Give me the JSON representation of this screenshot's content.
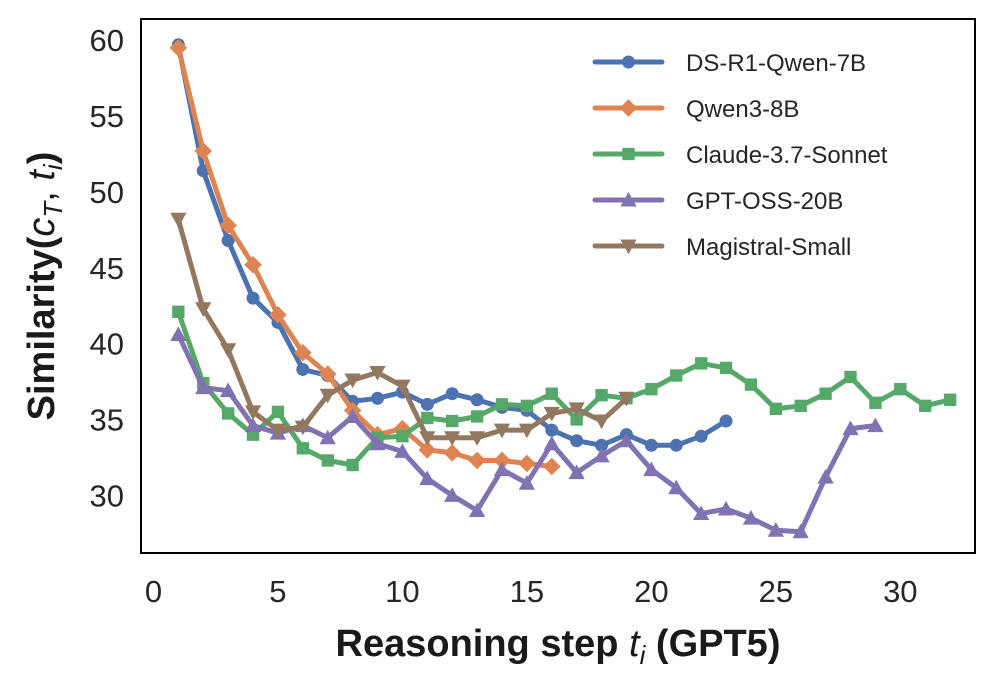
{
  "chart_data": {
    "type": "line",
    "title": "",
    "xlabel": "Reasoning step t_i (GPT5)",
    "xlabel_parts": {
      "pre": "Reasoning step ",
      "var": "t",
      "sub": "i",
      "post": " (GPT5)"
    },
    "ylabel": "Similarity(c_T, t_i)",
    "ylabel_parts": {
      "pre": "Similarity(",
      "var1": "c",
      "sub1": "T",
      "sep": ", ",
      "var2": "t",
      "sub2": "i",
      "post": ")"
    },
    "xlim": [
      -0.5,
      33
    ],
    "ylim": [
      26.2,
      61.4
    ],
    "xticks": [
      0,
      5,
      10,
      15,
      20,
      25,
      30
    ],
    "yticks": [
      30,
      35,
      40,
      45,
      50,
      55,
      60
    ],
    "xtick_labels": [
      "0",
      "5",
      "10",
      "15",
      "20",
      "25",
      "30"
    ],
    "ytick_labels": [
      "30",
      "35",
      "40",
      "45",
      "50",
      "55",
      "60"
    ],
    "grid": false,
    "legend_position": "top-right",
    "series": [
      {
        "name": "DS-R1-Qwen-7B",
        "color": "#4c72b0",
        "marker": "circle",
        "x": [
          1,
          2,
          3,
          4,
          5,
          6,
          7,
          8,
          9,
          10,
          11,
          12,
          13,
          14,
          15,
          16,
          17,
          18,
          19,
          20,
          21,
          22,
          23
        ],
        "values": [
          59.7,
          51.4,
          46.8,
          43.0,
          41.4,
          38.3,
          37.9,
          36.2,
          36.4,
          36.8,
          36.0,
          36.7,
          36.3,
          35.8,
          35.6,
          34.3,
          33.6,
          33.3,
          34.0,
          33.3,
          33.3,
          33.9,
          34.9
        ]
      },
      {
        "name": "Qwen3-8B",
        "color": "#dd8452",
        "marker": "diamond",
        "x": [
          1,
          2,
          3,
          4,
          5,
          6,
          7,
          8,
          9,
          10,
          11,
          12,
          13,
          14,
          15,
          16
        ],
        "values": [
          59.5,
          52.7,
          47.8,
          45.2,
          41.9,
          39.4,
          38.0,
          35.6,
          34.0,
          34.4,
          33.0,
          32.8,
          32.3,
          32.3,
          32.1,
          31.9
        ]
      },
      {
        "name": "Claude-3.7-Sonnet",
        "color": "#55a868",
        "marker": "square",
        "x": [
          1,
          2,
          3,
          4,
          5,
          6,
          7,
          8,
          9,
          10,
          11,
          12,
          13,
          14,
          15,
          16,
          17,
          18,
          19,
          20,
          21,
          22,
          23,
          24,
          25,
          26,
          27,
          28,
          29,
          30,
          31,
          32
        ],
        "values": [
          42.1,
          37.4,
          35.4,
          34.0,
          35.5,
          33.1,
          32.3,
          32.0,
          33.8,
          33.9,
          35.1,
          34.9,
          35.2,
          36.0,
          35.9,
          36.7,
          35.0,
          36.6,
          36.4,
          37.0,
          37.9,
          38.7,
          38.4,
          37.3,
          35.7,
          35.9,
          36.7,
          37.8,
          36.1,
          37.0,
          35.9,
          36.3
        ]
      },
      {
        "name": "GPT-OSS-20B",
        "color": "#8172b3",
        "marker": "triangle-up",
        "x": [
          1,
          2,
          3,
          4,
          5,
          6,
          7,
          8,
          9,
          10,
          11,
          12,
          13,
          14,
          15,
          16,
          17,
          18,
          19,
          20,
          21,
          22,
          23,
          24,
          25,
          26,
          27,
          28,
          29
        ],
        "values": [
          40.6,
          37.1,
          36.9,
          34.6,
          34.1,
          34.6,
          33.8,
          35.2,
          33.4,
          32.9,
          31.1,
          30.0,
          29.0,
          31.7,
          30.8,
          33.4,
          31.5,
          32.6,
          33.6,
          31.7,
          30.5,
          28.8,
          29.1,
          28.5,
          27.7,
          27.6,
          31.2,
          34.4,
          34.6
        ]
      },
      {
        "name": "Magistral-Small",
        "color": "#937860",
        "marker": "triangle-down",
        "x": [
          1,
          2,
          3,
          4,
          5,
          6,
          7,
          8,
          9,
          10,
          11,
          12,
          13,
          14,
          15,
          16,
          17,
          18,
          19
        ],
        "values": [
          48.2,
          42.3,
          39.6,
          35.5,
          34.3,
          34.5,
          36.6,
          37.6,
          38.1,
          37.2,
          33.8,
          33.8,
          33.8,
          34.3,
          34.3,
          35.4,
          35.7,
          34.9,
          36.4
        ]
      }
    ]
  }
}
